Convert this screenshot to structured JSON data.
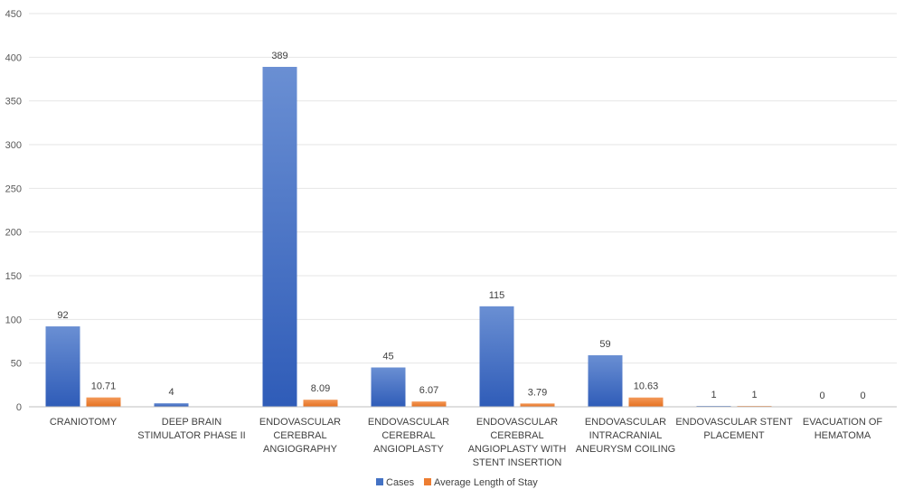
{
  "chart_data": {
    "type": "bar",
    "title": "",
    "xlabel": "",
    "ylabel": "",
    "ylim": [
      0,
      450
    ],
    "yticks": [
      0,
      50,
      100,
      150,
      200,
      250,
      300,
      350,
      400,
      450
    ],
    "grid": true,
    "legend_position": "bottom",
    "categories": [
      [
        "CRANIOTOMY"
      ],
      [
        "DEEP BRAIN",
        "STIMULATOR PHASE II"
      ],
      [
        "ENDOVASCULAR",
        "CEREBRAL",
        "ANGIOGRAPHY"
      ],
      [
        "ENDOVASCULAR",
        "CEREBRAL",
        "ANGIOPLASTY"
      ],
      [
        "ENDOVASCULAR",
        "CEREBRAL",
        "ANGIOPLASTY WITH",
        "STENT INSERTION"
      ],
      [
        "ENDOVASCULAR",
        "INTRACRANIAL",
        "ANEURYSM COILING"
      ],
      [
        "ENDOVASCULAR STENT",
        "PLACEMENT"
      ],
      [
        "EVACUATION OF",
        "HEMATOMA"
      ]
    ],
    "series": [
      {
        "name": "Cases",
        "color": "#4472c4",
        "values": [
          92,
          4,
          389,
          45,
          115,
          59,
          1,
          0
        ],
        "labels": [
          "92",
          "4",
          "389",
          "45",
          "115",
          "59",
          "1",
          "0"
        ]
      },
      {
        "name": "Average Length of Stay",
        "color": "#ed7d31",
        "values": [
          10.71,
          null,
          8.09,
          6.07,
          3.79,
          10.63,
          1,
          0
        ],
        "labels": [
          "10.71",
          "",
          "8.09",
          "6.07",
          "3.79",
          "10.63",
          "1",
          "0"
        ]
      }
    ]
  }
}
